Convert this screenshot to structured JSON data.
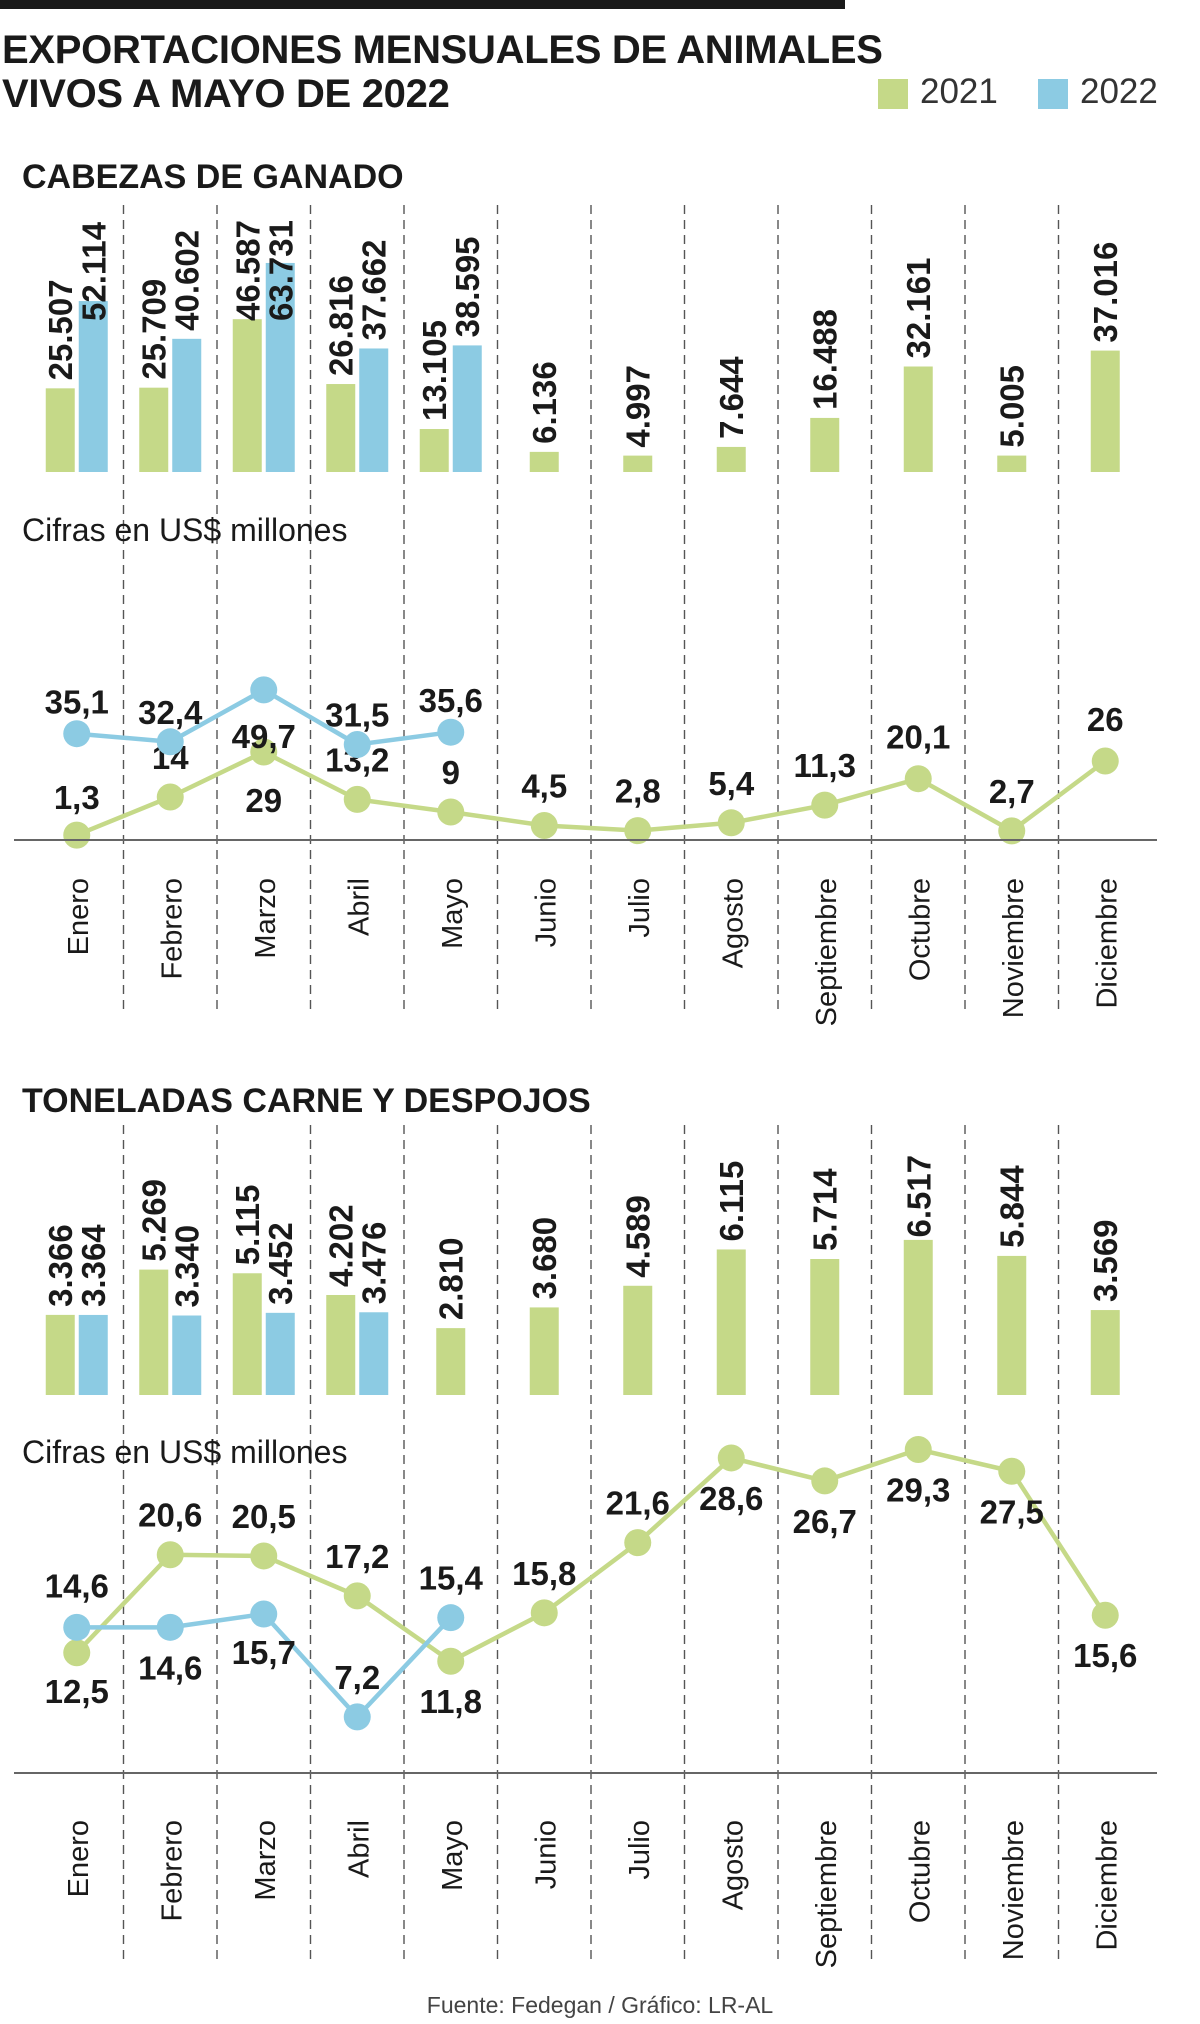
{
  "title_lines": [
    "EXPORTACIONES MENSUALES DE ANIMALES",
    "VIVOS A MAYO DE 2022"
  ],
  "legend": [
    {
      "label": "2021",
      "color": "#c5d988"
    },
    {
      "label": "2022",
      "color": "#8ccbe3"
    }
  ],
  "footer": "Fuente: Fedegan / Gráfico: LR-AL",
  "colors": {
    "green": "#c5d988",
    "blue": "#8ccbe3",
    "text": "#1a1a1a",
    "grid": "#555555"
  },
  "chart_data": [
    {
      "type": "bar",
      "title": "CABEZAS DE GANADO",
      "categories": [
        "Enero",
        "Febrero",
        "Marzo",
        "Abril",
        "Mayo",
        "Junio",
        "Julio",
        "Agosto",
        "Septiembre",
        "Octubre",
        "Noviembre",
        "Diciembre"
      ],
      "series": [
        {
          "name": "2021",
          "values": [
            25507,
            25709,
            46587,
            26816,
            13105,
            6136,
            4997,
            7644,
            16488,
            32161,
            5005,
            37016
          ],
          "labels": [
            "25.507",
            "25.709",
            "46.587",
            "26.816",
            "13.105",
            "6.136",
            "4.997",
            "7.644",
            "16.488",
            "32.161",
            "5.005",
            "37.016"
          ]
        },
        {
          "name": "2022",
          "values": [
            52114,
            40602,
            63731,
            37662,
            38595,
            null,
            null,
            null,
            null,
            null,
            null,
            null
          ],
          "labels": [
            "52.114",
            "40.602",
            "63.731",
            "37.662",
            "38.595",
            null,
            null,
            null,
            null,
            null,
            null,
            null
          ]
        }
      ]
    },
    {
      "type": "line",
      "title": "Cifras en US$ millones",
      "categories": [
        "Enero",
        "Febrero",
        "Marzo",
        "Abril",
        "Mayo",
        "Junio",
        "Julio",
        "Agosto",
        "Septiembre",
        "Octubre",
        "Noviembre",
        "Diciembre"
      ],
      "series": [
        {
          "name": "2021",
          "values": [
            1.3,
            14,
            29,
            13.2,
            9,
            4.5,
            2.8,
            5.4,
            11.3,
            20.1,
            2.7,
            26
          ],
          "labels": [
            "1,3",
            "14",
            "29",
            "13,2",
            "9",
            "4,5",
            "2,8",
            "5,4",
            "11,3",
            "20,1",
            "2,7",
            "26"
          ]
        },
        {
          "name": "2022",
          "values": [
            35.1,
            32.4,
            49.7,
            31.5,
            35.6,
            null,
            null,
            null,
            null,
            null,
            null,
            null
          ],
          "labels": [
            "35,1",
            "32,4",
            "49,7",
            "31,5",
            "35,6",
            null,
            null,
            null,
            null,
            null,
            null,
            null
          ]
        }
      ]
    },
    {
      "type": "bar",
      "title": "TONELADAS CARNE Y DESPOJOS",
      "categories": [
        "Enero",
        "Febrero",
        "Marzo",
        "Abril",
        "Mayo",
        "Junio",
        "Julio",
        "Agosto",
        "Septiembre",
        "Octubre",
        "Noviembre",
        "Diciembre"
      ],
      "series": [
        {
          "name": "2021",
          "values": [
            3366,
            5269,
            5115,
            4202,
            2810,
            3680,
            4589,
            6115,
            5714,
            6517,
            5844,
            3569
          ],
          "labels": [
            "3.366",
            "5.269",
            "5.115",
            "4.202",
            "2.810",
            "3.680",
            "4.589",
            "6.115",
            "5.714",
            "6.517",
            "5.844",
            "3.569"
          ]
        },
        {
          "name": "2022",
          "values": [
            3364,
            3340,
            3452,
            3476,
            null,
            null,
            null,
            null,
            null,
            null,
            null,
            null
          ],
          "labels": [
            "3.364",
            "3.340",
            "3.452",
            "3.476",
            null,
            null,
            null,
            null,
            null,
            null,
            null,
            null
          ]
        }
      ]
    },
    {
      "type": "line",
      "title": "Cifras en US$ millones",
      "categories": [
        "Enero",
        "Febrero",
        "Marzo",
        "Abril",
        "Mayo",
        "Junio",
        "Julio",
        "Agosto",
        "Septiembre",
        "Octubre",
        "Noviembre",
        "Diciembre"
      ],
      "series": [
        {
          "name": "2021",
          "values": [
            12.5,
            20.6,
            20.5,
            17.2,
            11.8,
            15.8,
            21.6,
            28.6,
            26.7,
            29.3,
            27.5,
            15.6
          ],
          "labels": [
            "12,5",
            "20,6",
            "20,5",
            "17,2",
            "11,8",
            "15,8",
            "21,6",
            "28,6",
            "26,7",
            "29,3",
            "27,5",
            "15,6"
          ]
        },
        {
          "name": "2022",
          "values": [
            14.6,
            14.6,
            15.7,
            7.2,
            15.4,
            null,
            null,
            null,
            null,
            null,
            null,
            null
          ],
          "labels": [
            "14,6",
            "14,6",
            "15,7",
            "7,2",
            "15,4",
            null,
            null,
            null,
            null,
            null,
            null,
            null
          ]
        }
      ]
    }
  ]
}
